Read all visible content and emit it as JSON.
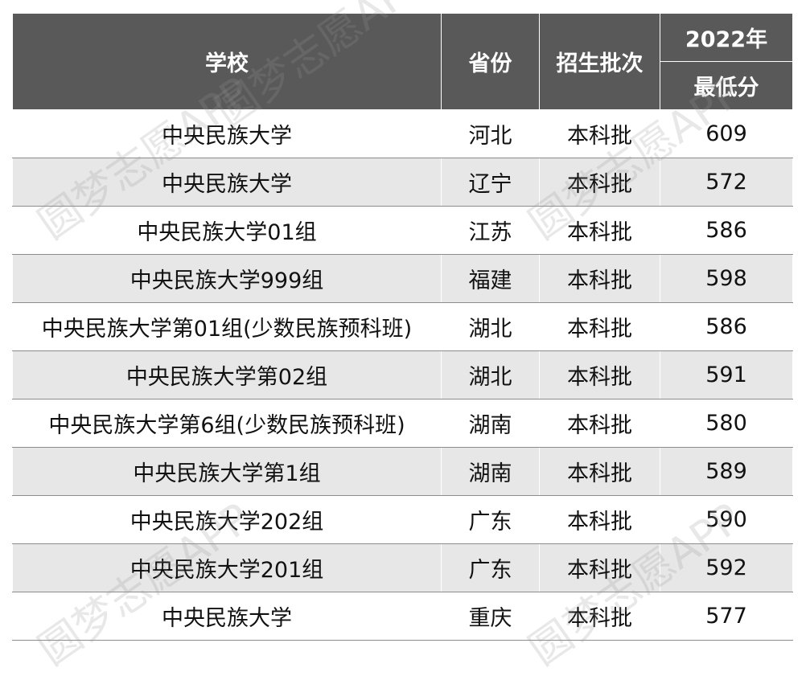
{
  "header": {
    "school": "学校",
    "province": "省份",
    "batch": "招生批次",
    "year": "2022年",
    "min_score": "最低分"
  },
  "rows": [
    {
      "school": "中央民族大学",
      "province": "河北",
      "batch": "本科批",
      "score": "609"
    },
    {
      "school": "中央民族大学",
      "province": "辽宁",
      "batch": "本科批",
      "score": "572"
    },
    {
      "school": "中央民族大学01组",
      "province": "江苏",
      "batch": "本科批",
      "score": "586"
    },
    {
      "school": "中央民族大学999组",
      "province": "福建",
      "batch": "本科批",
      "score": "598"
    },
    {
      "school": "中央民族大学第01组(少数民族预科班)",
      "province": "湖北",
      "batch": "本科批",
      "score": "586"
    },
    {
      "school": "中央民族大学第02组",
      "province": "湖北",
      "batch": "本科批",
      "score": "591"
    },
    {
      "school": "中央民族大学第6组(少数民族预科班)",
      "province": "湖南",
      "batch": "本科批",
      "score": "580"
    },
    {
      "school": "中央民族大学第1组",
      "province": "湖南",
      "batch": "本科批",
      "score": "589"
    },
    {
      "school": "中央民族大学202组",
      "province": "广东",
      "batch": "本科批",
      "score": "590"
    },
    {
      "school": "中央民族大学201组",
      "province": "广东",
      "batch": "本科批",
      "score": "592"
    },
    {
      "school": "中央民族大学",
      "province": "重庆",
      "batch": "本科批",
      "score": "577"
    }
  ],
  "watermark": "圆梦志愿APP"
}
